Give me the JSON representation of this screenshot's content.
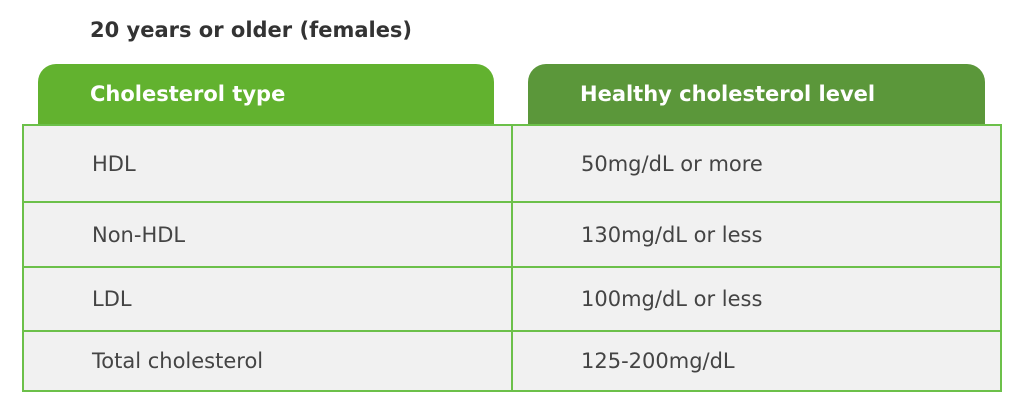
{
  "title": "20 years or older (females)",
  "table": {
    "headers": [
      "Cholesterol type",
      "Healthy cholesterol level"
    ],
    "rows": [
      [
        "HDL",
        "50mg/dL or more"
      ],
      [
        "Non-HDL",
        "130mg/dL or less"
      ],
      [
        "LDL",
        "100mg/dL or less"
      ],
      [
        "Total cholesterol",
        "125-200mg/dL"
      ]
    ]
  }
}
